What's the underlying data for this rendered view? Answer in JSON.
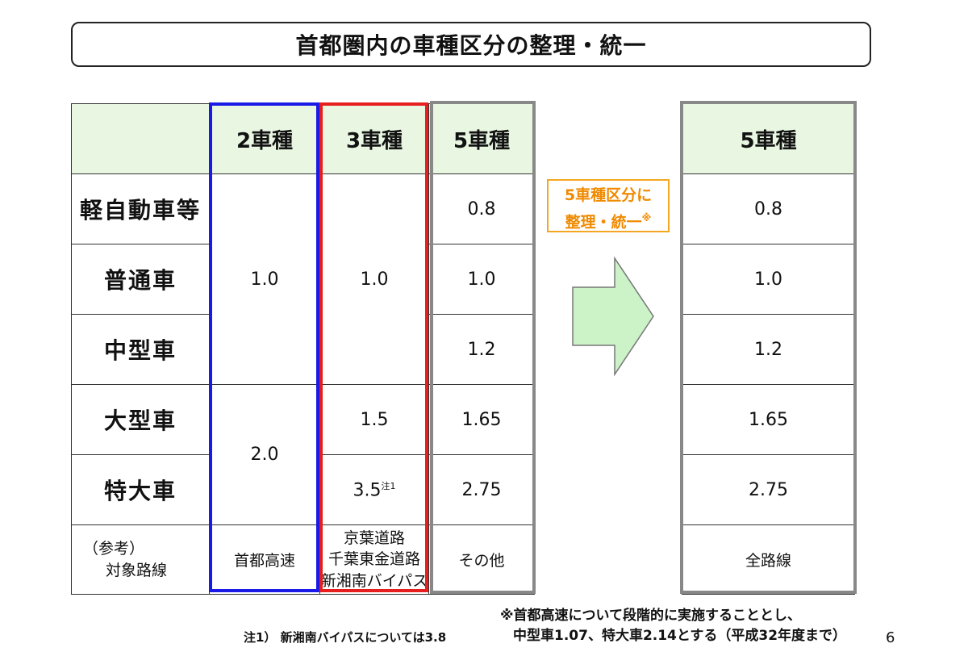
{
  "title": "首都圏内の車種区分の整理・統一",
  "left_table": {
    "headers": [
      "",
      "2車種",
      "3車種",
      "5車種"
    ],
    "row_labels": [
      "軽自動車等",
      "普通車",
      "中型車",
      "大型車",
      "特大車"
    ],
    "two_types": {
      "small": "1.0",
      "large": "2.0"
    },
    "three_types": {
      "small": "1.0",
      "large": "1.5",
      "xlarge": "3.5",
      "xlarge_note": "注1"
    },
    "five_types": [
      "0.8",
      "1.0",
      "1.2",
      "1.65",
      "2.75"
    ],
    "reference": {
      "label_line1": "（参考）",
      "label_line2": "対象路線",
      "two_types": "首都高速",
      "three_types_lines": [
        "京葉道路",
        "千葉東金道路",
        "新湘南バイパス"
      ],
      "five_types": "その他"
    }
  },
  "callout": {
    "line1": "5車種区分に",
    "line2": "整理・統一",
    "mark": "※"
  },
  "right_table": {
    "header": "5車種",
    "values": [
      "0.8",
      "1.0",
      "1.2",
      "1.65",
      "2.75"
    ],
    "reference": "全路線"
  },
  "footnote1": "注1）  新湘南バイパスについては3.8",
  "footnote2_line1": "※首都高速について段階的に実施することとし、",
  "footnote2_line2": "中型車1.07、特大車2.14とする（平成32年度まで）",
  "page_number": "6",
  "colors": {
    "header_fill": "#e8f6e2",
    "two_type_frame": "#1a1ae6",
    "three_type_frame": "#e61e1e",
    "callout": "#f5a623",
    "arrow_fill": "#ccf2c8"
  }
}
